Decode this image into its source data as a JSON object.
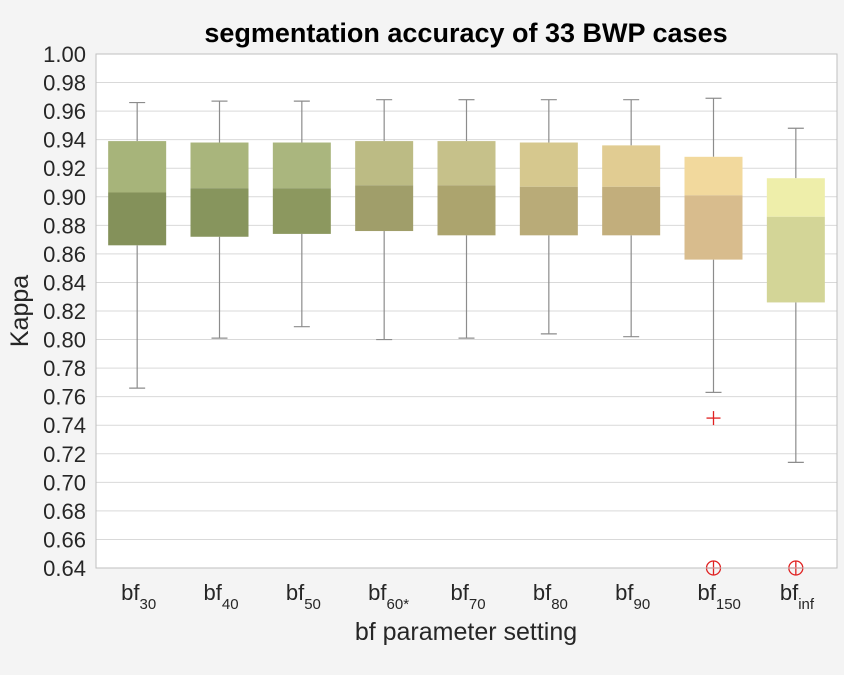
{
  "chart_data": {
    "type": "box",
    "title": "segmentation accuracy of 33 BWP cases",
    "xlabel": "bf parameter setting",
    "ylabel": "Kappa",
    "ylim": [
      0.64,
      1.0
    ],
    "yticks": [
      "0.64",
      "0.66",
      "0.68",
      "0.70",
      "0.72",
      "0.74",
      "0.76",
      "0.78",
      "0.80",
      "0.82",
      "0.84",
      "0.86",
      "0.88",
      "0.90",
      "0.92",
      "0.94",
      "0.96",
      "0.98",
      "1.00"
    ],
    "grid": true,
    "categories": [
      {
        "base": "bf",
        "sub": "30"
      },
      {
        "base": "bf",
        "sub": "40"
      },
      {
        "base": "bf",
        "sub": "50"
      },
      {
        "base": "bf",
        "sub": "60*"
      },
      {
        "base": "bf",
        "sub": "70"
      },
      {
        "base": "bf",
        "sub": "80"
      },
      {
        "base": "bf",
        "sub": "90"
      },
      {
        "base": "bf",
        "sub": "150"
      },
      {
        "base": "bf",
        "sub": "inf"
      }
    ],
    "boxes": [
      {
        "whisker_low": 0.766,
        "q1": 0.866,
        "median": 0.903,
        "q3": 0.939,
        "whisker_high": 0.966,
        "outliers": []
      },
      {
        "whisker_low": 0.801,
        "q1": 0.872,
        "median": 0.906,
        "q3": 0.938,
        "whisker_high": 0.967,
        "outliers": []
      },
      {
        "whisker_low": 0.809,
        "q1": 0.874,
        "median": 0.906,
        "q3": 0.938,
        "whisker_high": 0.967,
        "outliers": []
      },
      {
        "whisker_low": 0.8,
        "q1": 0.876,
        "median": 0.908,
        "q3": 0.939,
        "whisker_high": 0.968,
        "outliers": []
      },
      {
        "whisker_low": 0.801,
        "q1": 0.873,
        "median": 0.908,
        "q3": 0.939,
        "whisker_high": 0.968,
        "outliers": []
      },
      {
        "whisker_low": 0.804,
        "q1": 0.873,
        "median": 0.907,
        "q3": 0.938,
        "whisker_high": 0.968,
        "outliers": []
      },
      {
        "whisker_low": 0.802,
        "q1": 0.873,
        "median": 0.907,
        "q3": 0.936,
        "whisker_high": 0.968,
        "outliers": []
      },
      {
        "whisker_low": 0.763,
        "q1": 0.856,
        "median": 0.901,
        "q3": 0.928,
        "whisker_high": 0.969,
        "outliers": [
          0.745
        ],
        "below_range": true
      },
      {
        "whisker_low": 0.714,
        "q1": 0.826,
        "median": 0.886,
        "q3": 0.913,
        "whisker_high": 0.948,
        "outliers": [],
        "below_range": true
      }
    ],
    "colors": {
      "upper": [
        "#a7b47a",
        "#a9b57c",
        "#aab67e",
        "#bcbb84",
        "#c6c18a",
        "#d6c88e",
        "#e1cc92",
        "#f2d99d",
        "#eeeeaa"
      ],
      "lower": [
        "#84915a",
        "#87955d",
        "#8c985f",
        "#a09e6a",
        "#aca46e",
        "#b9ab78",
        "#c2ae7c",
        "#d8bc8d",
        "#d3d597"
      ],
      "outlier": "#e02020",
      "whisker": "#8c8c8c",
      "grid": "#d9d9d9"
    }
  }
}
